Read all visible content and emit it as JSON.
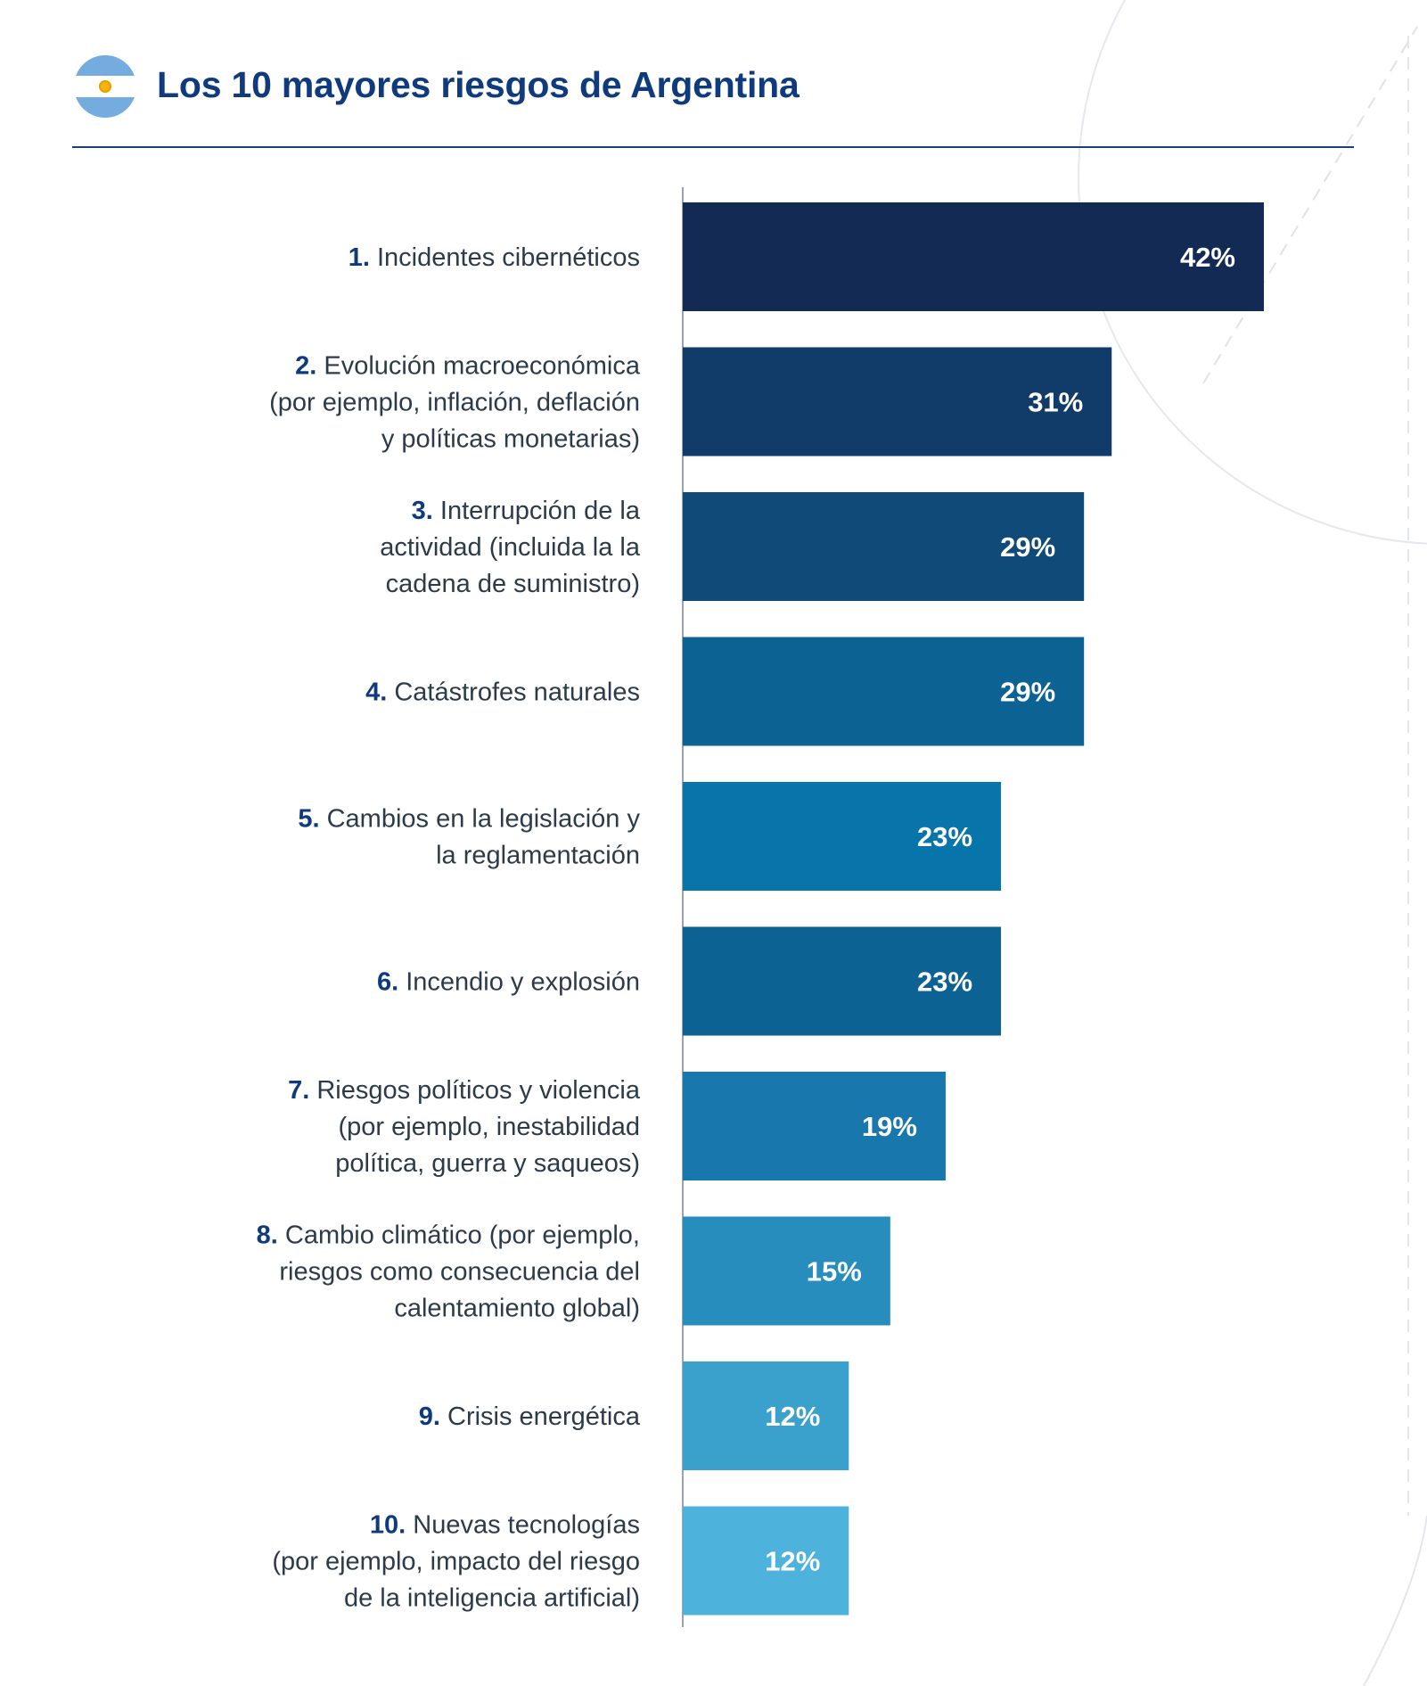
{
  "title": "Los 10 mayores riesgos de Argentina",
  "flag": {
    "name": "argentina-flag-icon",
    "colors": [
      "#74ACDF",
      "#FFFFFF",
      "#F6B40E"
    ]
  },
  "chart_data": {
    "type": "bar",
    "orientation": "horizontal",
    "title": "Los 10 mayores riesgos de Argentina",
    "xlabel": "",
    "ylabel": "",
    "xlim": [
      0,
      50
    ],
    "grid": false,
    "legend": "none",
    "unit": "%",
    "categories": [
      {
        "num": "1.",
        "lines": [
          "Incidentes cibernéticos"
        ]
      },
      {
        "num": "2.",
        "lines": [
          "Evolución macroeconómica",
          "(por ejemplo, inflación, deflación",
          "y políticas monetarias)"
        ]
      },
      {
        "num": "3.",
        "lines": [
          "Interrupción de la",
          "actividad (incluida la la",
          "cadena de suministro)"
        ]
      },
      {
        "num": "4.",
        "lines": [
          "Catástrofes naturales"
        ]
      },
      {
        "num": "5.",
        "lines": [
          "Cambios en la legislación y",
          "la reglamentación"
        ]
      },
      {
        "num": "6.",
        "lines": [
          "Incendio y explosión"
        ]
      },
      {
        "num": "7.",
        "lines": [
          "Riesgos políticos y violencia",
          "(por ejemplo, inestabilidad",
          "política, guerra y saqueos)"
        ]
      },
      {
        "num": "8.",
        "lines": [
          "Cambio climático (por ejemplo,",
          "riesgos como consecuencia del",
          "calentamiento global)"
        ]
      },
      {
        "num": "9.",
        "lines": [
          "Crisis energética"
        ]
      },
      {
        "num": "10.",
        "lines": [
          "Nuevas tecnologías",
          "(por ejemplo, impacto del riesgo",
          "de la inteligencia artificial)"
        ]
      }
    ],
    "values": [
      42,
      31,
      29,
      29,
      23,
      23,
      19,
      15,
      12,
      12
    ],
    "value_labels": [
      "42%",
      "31%",
      "29%",
      "29%",
      "23%",
      "23%",
      "19%",
      "15%",
      "12%",
      "12%"
    ],
    "colors": [
      "#132A55",
      "#113B68",
      "#0F4A78",
      "#0B6293",
      "#0774AA",
      "#0B6293",
      "#1878AE",
      "#278DBC",
      "#39A1CC",
      "#4DB3DC"
    ]
  }
}
